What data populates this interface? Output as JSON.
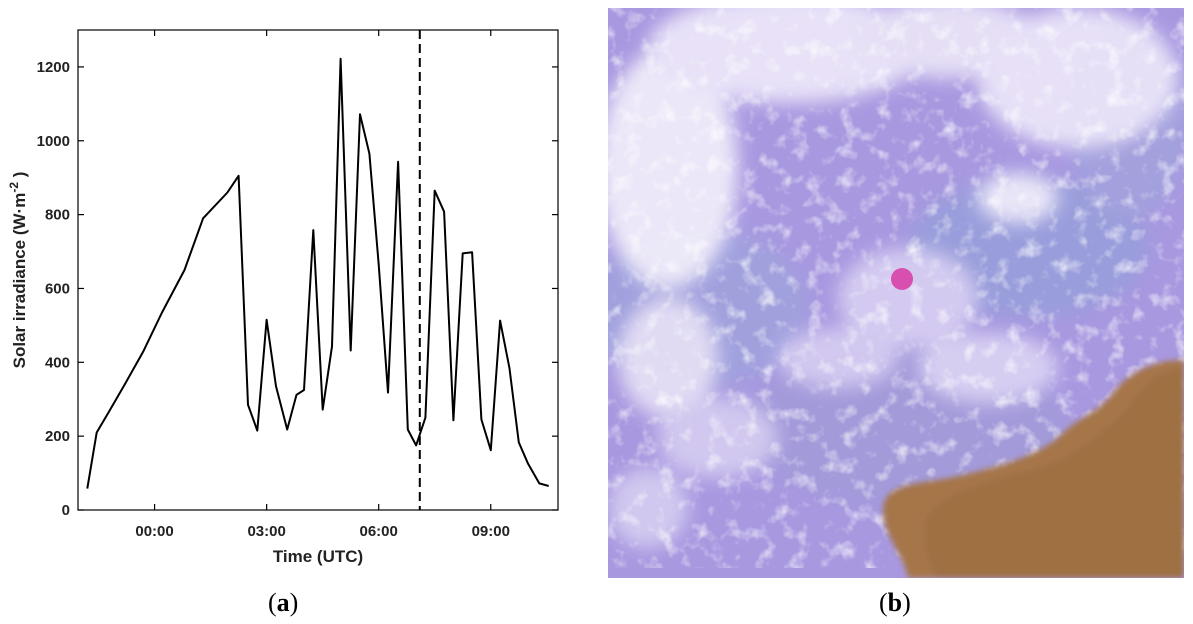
{
  "chart_data": {
    "type": "line",
    "xlabel": "Time (UTC)",
    "ylabel": "Solar irradiance (W·m",
    "ylabel_sup": "-2",
    "ylabel_close": " )",
    "ylim": [
      0,
      1300
    ],
    "xlim": [
      -2.05,
      10.8
    ],
    "yticks": [
      0,
      200,
      400,
      600,
      800,
      1000,
      1200
    ],
    "xticks": [
      0,
      3,
      6,
      9
    ],
    "xtick_labels": [
      "00:00",
      "03:00",
      "06:00",
      "09:00"
    ],
    "vline_x": 7.1,
    "grid": false,
    "series": [
      {
        "x": [
          -1.8,
          -1.55,
          -1.2,
          -0.8,
          -0.3,
          0.2,
          0.8,
          1.3,
          1.95,
          2.25,
          2.5,
          2.75,
          3.0,
          3.25,
          3.55,
          3.8,
          4.0,
          4.25,
          4.5,
          4.75,
          4.98,
          5.25,
          5.5,
          5.75,
          6.0,
          6.25,
          6.52,
          6.78,
          7.0,
          7.25,
          7.5,
          7.75,
          8.0,
          8.25,
          8.5,
          8.75,
          9.0,
          9.25,
          9.5,
          9.75,
          10.0,
          10.3,
          10.55
        ],
        "values": [
          58,
          210,
          270,
          340,
          430,
          535,
          650,
          790,
          860,
          905,
          285,
          215,
          515,
          335,
          218,
          312,
          325,
          758,
          272,
          443,
          1222,
          432,
          1072,
          965,
          665,
          318,
          943,
          218,
          175,
          250,
          865,
          808,
          243,
          695,
          698,
          245,
          162,
          513,
          385,
          183,
          125,
          72,
          65
        ]
      }
    ]
  },
  "captions": {
    "a": "a",
    "b": "b"
  },
  "satellite_image": {
    "marker_color": "#d84fb0",
    "cloud_color": "#ffffff",
    "surface_color": "#a898e0",
    "desert_color": "#a6764a"
  }
}
